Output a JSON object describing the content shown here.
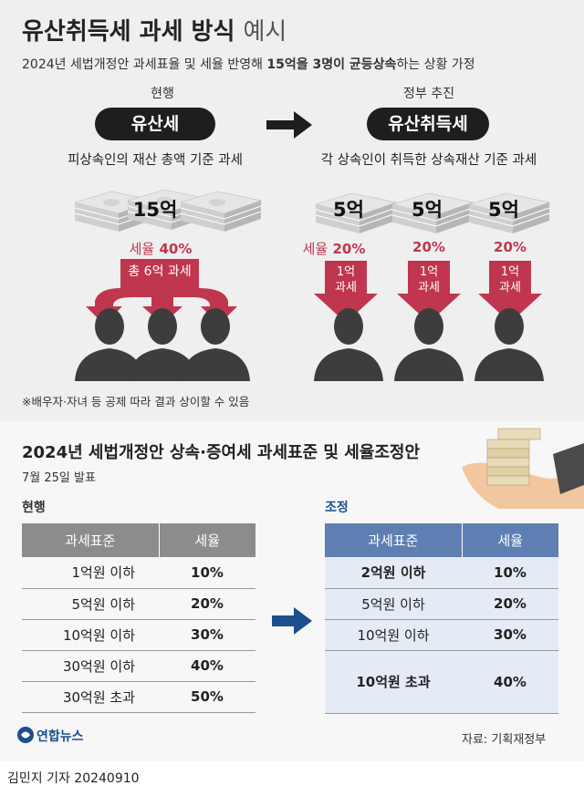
{
  "title_main": "유산취득세 과세 방식",
  "title_light": "예시",
  "subtitle_pre": "2024년 세법개정안 과세표율 및 세율 반영해 ",
  "subtitle_bold": "15억을 3명이 균등상속",
  "subtitle_post": "하는 상황 가정",
  "left": {
    "label": "현행",
    "pill": "유산세",
    "desc": "피상속인의 재산 총액 기준 과세",
    "amount": "15억",
    "rate_label": "세율",
    "rate": "40%",
    "tax": "총 6억 과세"
  },
  "right": {
    "label": "정부 추진",
    "pill": "유산취득세",
    "desc": "각 상속인이 취득한 상속재산 기준 과세",
    "amounts": [
      "5억",
      "5억",
      "5억"
    ],
    "rate_label": "세율",
    "rates": [
      "20%",
      "20%",
      "20%"
    ],
    "tax_line1": "1억",
    "tax_line2": "과세"
  },
  "note": "※배우자·자녀 등 공제 따라 결과 상이할 수 있음",
  "section2": {
    "title": "2024년 세법개정안 상속·증여세 과세표준 및 세율조정안",
    "date": "7월 25일 발표",
    "current_label": "현행",
    "adjust_label": "조정",
    "col1": "과세표준",
    "col2": "세율",
    "current_rows": [
      {
        "base": "1억원 이하",
        "rate": "10%"
      },
      {
        "base": "5억원 이하",
        "rate": "20%"
      },
      {
        "base": "10억원 이하",
        "rate": "30%"
      },
      {
        "base": "30억원 이하",
        "rate": "40%"
      },
      {
        "base": "30억원 초과",
        "rate": "50%"
      }
    ],
    "adjust_rows": [
      {
        "base": "2억원 이하",
        "rate": "10%"
      },
      {
        "base": "5억원 이하",
        "rate": "20%"
      },
      {
        "base": "10억원 이하",
        "rate": "30%"
      },
      {
        "base": "10억원 초과",
        "rate": "40%"
      }
    ]
  },
  "source": "자료: 기획재정부",
  "logo": "연합뉴스",
  "byline": "김민지 기자  20240910",
  "colors": {
    "accent": "#c0364f",
    "blue": "#1b4f8e",
    "current_header": "#8c8c8c",
    "adjust_header": "#5f7fb3"
  }
}
